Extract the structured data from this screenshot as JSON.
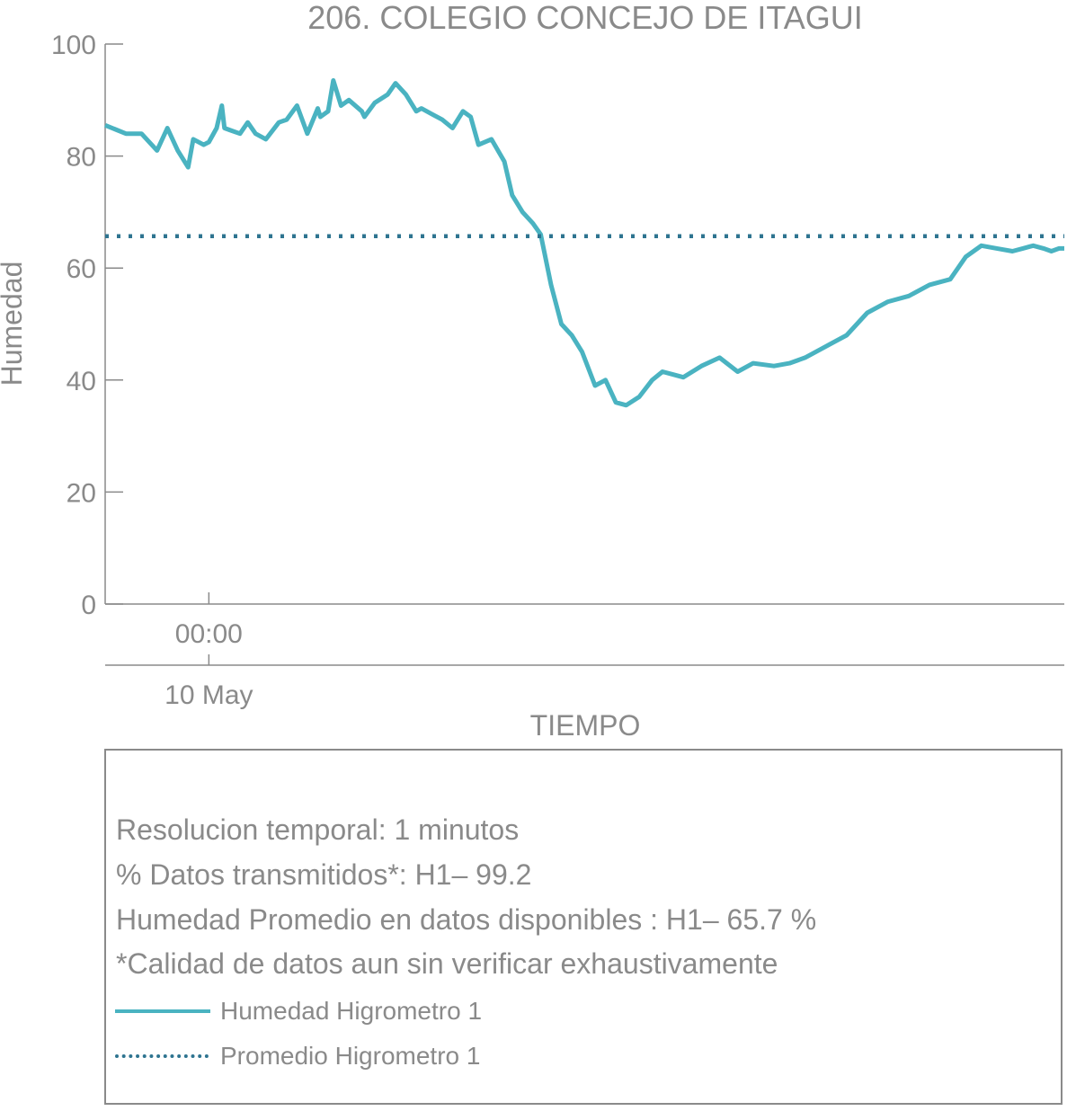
{
  "chart_data": {
    "type": "line",
    "title": "206. COLEGIO CONCEJO DE ITAGUI",
    "xlabel": "TIEMPO",
    "ylabel": "Humedad",
    "ylim": [
      0,
      100
    ],
    "yticks": [
      0,
      20,
      40,
      60,
      80,
      100
    ],
    "x_unit": "hours relative to 10 May 00:00",
    "xlim": [
      -2,
      16.5
    ],
    "xticks": [
      {
        "x": 0,
        "label": "00:00",
        "sublabel": "10 May"
      }
    ],
    "grid": false,
    "series": [
      {
        "name": "Humedad Higrometro 1",
        "style": "solid",
        "color": "#4ab3c1",
        "x": [
          -2.0,
          -1.6,
          -1.3,
          -1.0,
          -0.8,
          -0.6,
          -0.4,
          -0.3,
          -0.1,
          0.0,
          0.15,
          0.25,
          0.3,
          0.45,
          0.6,
          0.75,
          0.9,
          1.1,
          1.35,
          1.5,
          1.7,
          1.9,
          2.1,
          2.15,
          2.3,
          2.4,
          2.55,
          2.7,
          2.95,
          3.0,
          3.2,
          3.45,
          3.6,
          3.8,
          4.0,
          4.1,
          4.3,
          4.5,
          4.7,
          4.9,
          5.05,
          5.2,
          5.45,
          5.7,
          5.85,
          6.05,
          6.25,
          6.4,
          6.6,
          6.8,
          7.0,
          7.2,
          7.45,
          7.65,
          7.85,
          8.05,
          8.3,
          8.55,
          8.75,
          8.95,
          9.15,
          9.5,
          9.85,
          10.2,
          10.5,
          10.9,
          11.2,
          11.5,
          11.9,
          12.3,
          12.7,
          13.1,
          13.5,
          13.9,
          14.3,
          14.6,
          14.9,
          15.2,
          15.5,
          15.7,
          15.9,
          16.1,
          16.25,
          16.4,
          16.5
        ],
        "y": [
          85.5,
          84,
          84,
          81,
          85,
          81,
          78,
          83,
          82,
          82.5,
          85,
          89,
          85,
          84.5,
          84,
          86,
          84,
          83,
          86,
          86.5,
          89,
          84,
          88.5,
          87,
          88,
          93.5,
          89,
          90,
          88,
          87,
          89.5,
          91,
          93,
          91,
          88,
          88.5,
          87.5,
          86.5,
          85,
          88,
          87,
          82,
          83,
          79,
          73,
          70,
          68,
          66,
          57,
          50,
          48,
          45,
          39,
          40,
          36,
          35.5,
          37,
          40,
          41.5,
          41,
          40.5,
          42.5,
          44,
          41.5,
          43,
          42.5,
          43,
          44,
          46,
          48,
          52,
          54,
          55,
          57,
          58,
          62,
          64,
          63.5,
          63,
          63.5,
          64,
          63.5,
          63,
          63.5,
          63.5
        ]
      },
      {
        "name": "Promedio Higrometro 1",
        "style": "dotted",
        "color": "#2e7490",
        "x": [
          -2.0,
          16.5
        ],
        "y": [
          65.7,
          65.7
        ]
      }
    ]
  },
  "info": {
    "lines": [
      "Resolucion temporal: 1 minutos",
      "% Datos transmitidos*: H1– 99.2",
      "Humedad Promedio en datos disponibles : H1– 65.7 %",
      "*Calidad de datos aun sin verificar exhaustivamente"
    ],
    "legend": [
      {
        "label": "Humedad Higrometro 1",
        "style": "solid",
        "color": "#4ab3c1"
      },
      {
        "label": "Promedio Higrometro 1",
        "style": "dotted",
        "color": "#2e7490"
      }
    ]
  },
  "colors": {
    "text": "#8a8a8a",
    "axis": "#8a8a8a",
    "series_main": "#4ab3c1",
    "series_avg": "#2e7490"
  }
}
